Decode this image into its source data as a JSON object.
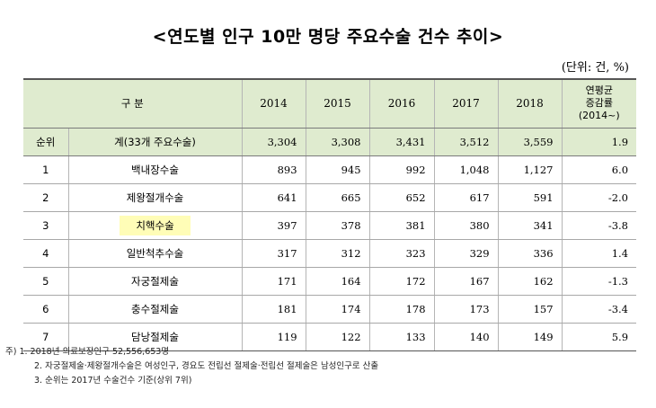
{
  "title": "<연도별 인구 10만 명당 주요수술 건수 추이>",
  "unit": "(단위: 건, %)",
  "table": {
    "header": {
      "category": "구 분",
      "years": [
        "2014",
        "2015",
        "2016",
        "2017",
        "2018"
      ],
      "rate_line1": "연평균",
      "rate_line2": "증감률",
      "rate_line3": "(2014~)"
    },
    "total": {
      "rank_label": "순위",
      "name": "계(33개 주요수술)",
      "values": [
        "3,304",
        "3,308",
        "3,431",
        "3,512",
        "3,559"
      ],
      "rate": "1.9"
    },
    "rows": [
      {
        "rank": "1",
        "name": "백내장수술",
        "values": [
          "893",
          "945",
          "992",
          "1,048",
          "1,127"
        ],
        "rate": "6.0"
      },
      {
        "rank": "2",
        "name": "제왕절개수술",
        "values": [
          "641",
          "665",
          "652",
          "617",
          "591"
        ],
        "rate": "-2.0"
      },
      {
        "rank": "3",
        "name": "치핵수술",
        "values": [
          "397",
          "378",
          "381",
          "380",
          "341"
        ],
        "rate": "-3.8"
      },
      {
        "rank": "4",
        "name": "일반척추수술",
        "values": [
          "317",
          "312",
          "323",
          "329",
          "336"
        ],
        "rate": "1.4"
      },
      {
        "rank": "5",
        "name": "자궁절제술",
        "values": [
          "171",
          "164",
          "172",
          "167",
          "162"
        ],
        "rate": "-1.3"
      },
      {
        "rank": "6",
        "name": "충수절제술",
        "values": [
          "181",
          "174",
          "178",
          "173",
          "157"
        ],
        "rate": "-3.4"
      },
      {
        "rank": "7",
        "name": "담낭절제술",
        "values": [
          "119",
          "122",
          "133",
          "140",
          "149"
        ],
        "rate": "5.9"
      }
    ]
  },
  "notes": [
    "주) 1. 2018년 의료보장인구 52,556,653명",
    "2. 자궁절제술·제왕절개수술은 여성인구, 경요도 전립선 절제술·전립선 절제술은 남성인구로 산출",
    "3. 순위는 2017년 수술건수 기준(상위 7위)"
  ],
  "colors": {
    "header_bg": "#dfebcf",
    "highlight_bg": "#fffdb7"
  }
}
